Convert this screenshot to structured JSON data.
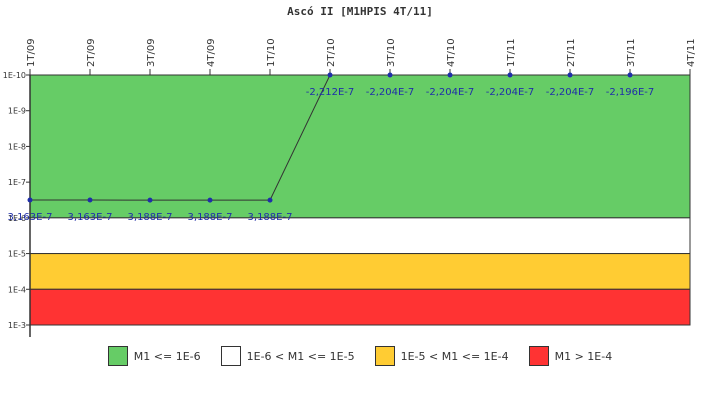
{
  "chart_data": {
    "type": "line",
    "title": "Ascó II [M1HPIS 4T/11]",
    "x_categories": [
      "1T/09",
      "2T/09",
      "3T/09",
      "4T/09",
      "1T/10",
      "2T/10",
      "3T/10",
      "4T/10",
      "1T/11",
      "2T/11",
      "3T/11",
      "4T/11"
    ],
    "y_scale": "log",
    "y_ticks": [
      "1E-10",
      "1E-9",
      "1E-8",
      "1E-7",
      "1E-6",
      "1E-5",
      "1E-4",
      "1E-3"
    ],
    "y_axis_direction": "1E-10 at top, 1E-3 at bottom",
    "series": [
      {
        "color": "#1f2ea8",
        "points": [
          {
            "x": "1T/09",
            "y": 3.163e-07,
            "label": "3,163E-7"
          },
          {
            "x": "2T/09",
            "y": 3.163e-07,
            "label": "3,163E-7"
          },
          {
            "x": "3T/09",
            "y": 3.188e-07,
            "label": "3,188E-7"
          },
          {
            "x": "4T/09",
            "y": 3.188e-07,
            "label": "3,188E-7"
          },
          {
            "x": "1T/10",
            "y": 3.188e-07,
            "label": "3,188E-7"
          },
          {
            "x": "2T/10",
            "y": -2.212e-07,
            "label": "-2,212E-7"
          },
          {
            "x": "3T/10",
            "y": -2.204e-07,
            "label": "-2,204E-7"
          },
          {
            "x": "4T/10",
            "y": -2.204e-07,
            "label": "-2,204E-7"
          },
          {
            "x": "1T/11",
            "y": -2.204e-07,
            "label": "-2,204E-7"
          },
          {
            "x": "2T/11",
            "y": -2.204e-07,
            "label": "-2,204E-7"
          },
          {
            "x": "3T/11",
            "y": -2.196e-07,
            "label": "-2,196E-7"
          }
        ]
      }
    ],
    "bands": [
      {
        "color": "#66cc66",
        "label": "M1 <= 1E-6",
        "from_exp": -10,
        "to_exp": -6
      },
      {
        "color": "#ffffff",
        "label": "1E-6 < M1 <= 1E-5",
        "from_exp": -6,
        "to_exp": -5
      },
      {
        "color": "#ffcc33",
        "label": "1E-5 < M1 <= 1E-4",
        "from_exp": -5,
        "to_exp": -4
      },
      {
        "color": "#ff3333",
        "label": "M1 > 1E-4",
        "from_exp": -4,
        "to_exp": -3
      }
    ],
    "legend_position": "bottom"
  }
}
